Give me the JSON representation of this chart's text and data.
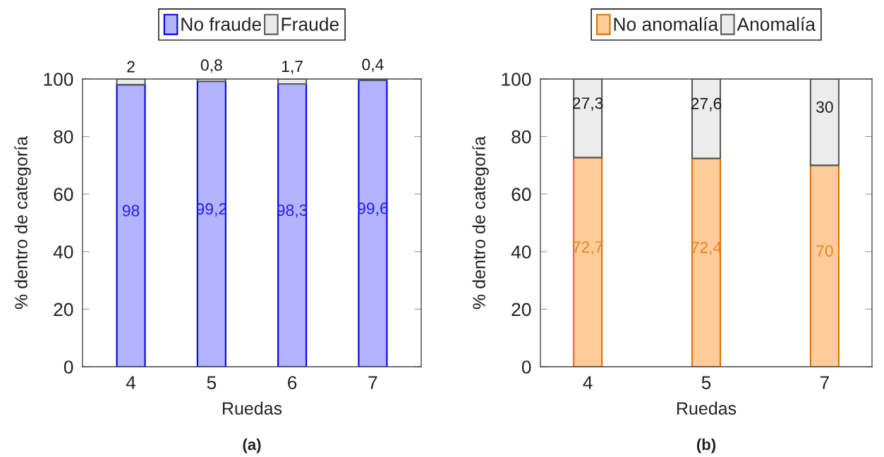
{
  "chart_data": [
    {
      "type": "bar",
      "stacked": true,
      "categories": [
        "4",
        "5",
        "6",
        "7"
      ],
      "xlabel": "Ruedas",
      "ylabel": "% dentro de categoría",
      "ylim": [
        0,
        100
      ],
      "yticks": [
        0,
        20,
        40,
        60,
        80,
        100
      ],
      "legend": "top",
      "annotations": [
        "(a)"
      ],
      "series": [
        {
          "name": "No fraude",
          "color": "#b3b3ff",
          "values": [
            98,
            99.2,
            98.3,
            99.6
          ],
          "value_labels": [
            "98",
            "99,2",
            "98,3",
            "99,6"
          ]
        },
        {
          "name": "Fraude",
          "color": "#ececec",
          "values": [
            2,
            0.8,
            1.7,
            0.4
          ],
          "value_labels": [
            "2",
            "0,8",
            "1,7",
            "0,4"
          ]
        }
      ]
    },
    {
      "type": "bar",
      "stacked": true,
      "categories": [
        "4",
        "5",
        "7"
      ],
      "xlabel": "Ruedas",
      "ylabel": "% dentro de categoría",
      "ylim": [
        0,
        100
      ],
      "yticks": [
        0,
        20,
        40,
        60,
        80,
        100
      ],
      "legend": "top",
      "annotations": [
        "(b)"
      ],
      "series": [
        {
          "name": "No anomalía",
          "color": "#ffcc99",
          "values": [
            72.7,
            72.4,
            70
          ],
          "value_labels": [
            "72,7",
            "72,4",
            "70"
          ]
        },
        {
          "name": "Anomalía",
          "color": "#ececec",
          "values": [
            27.3,
            27.6,
            30
          ],
          "value_labels": [
            "27,3",
            "27,6",
            "30"
          ]
        }
      ]
    }
  ]
}
